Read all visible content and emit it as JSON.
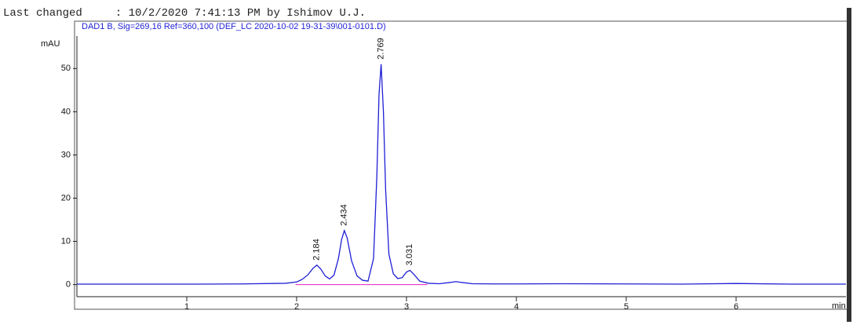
{
  "header": "Last changed     : 10/2/2020 7:41:13 PM by Ishimov U.J.",
  "chart_data": {
    "type": "line",
    "title": "DAD1 B, Sig=269,16 Ref=360,100 (DEF_LC 2020-10-02 19-31-39\\001-0101.D)",
    "y_label": "mAU",
    "x_label": "min",
    "xlim": [
      0,
      7
    ],
    "ylim": [
      -2.8,
      57.5
    ],
    "xticks": [
      1,
      2,
      3,
      4,
      5,
      6
    ],
    "yticks": [
      0,
      10,
      20,
      30,
      40,
      50
    ],
    "series": [
      {
        "color": "#1f1fd6",
        "x": [
          0,
          0.5,
          1.0,
          1.5,
          1.9,
          2.0,
          2.05,
          2.1,
          2.15,
          2.184,
          2.22,
          2.26,
          2.3,
          2.34,
          2.38,
          2.41,
          2.434,
          2.46,
          2.5,
          2.55,
          2.6,
          2.65,
          2.7,
          2.73,
          2.75,
          2.769,
          2.79,
          2.81,
          2.84,
          2.88,
          2.92,
          2.96,
          3.0,
          3.031,
          3.07,
          3.12,
          3.2,
          3.3,
          3.4,
          3.45,
          3.5,
          3.6,
          3.8,
          4.0,
          4.4,
          5.0,
          5.5,
          6.0,
          6.5,
          7.0
        ],
        "values": [
          0.1,
          0.1,
          0.1,
          0.15,
          0.3,
          0.6,
          1.2,
          2.2,
          3.8,
          4.5,
          3.6,
          2.0,
          1.3,
          2.2,
          6.0,
          10.5,
          12.5,
          10.8,
          5.5,
          2.0,
          1.0,
          0.8,
          6,
          25,
          44,
          51,
          40,
          22,
          7,
          2.5,
          1.4,
          1.6,
          2.9,
          3.3,
          2.3,
          0.8,
          0.3,
          0.2,
          0.5,
          0.7,
          0.5,
          0.2,
          0.15,
          0.15,
          0.2,
          0.15,
          0.1,
          0.25,
          0.1,
          0.1
        ]
      }
    ],
    "baseline": {
      "x": [
        1.99,
        3.19
      ],
      "color": "#e020c0"
    },
    "peaks": [
      {
        "x": 2.184,
        "y": 4.5
      },
      {
        "x": 2.434,
        "y": 12.5
      },
      {
        "x": 2.769,
        "y": 51
      },
      {
        "x": 3.031,
        "y": 3.3
      }
    ]
  }
}
